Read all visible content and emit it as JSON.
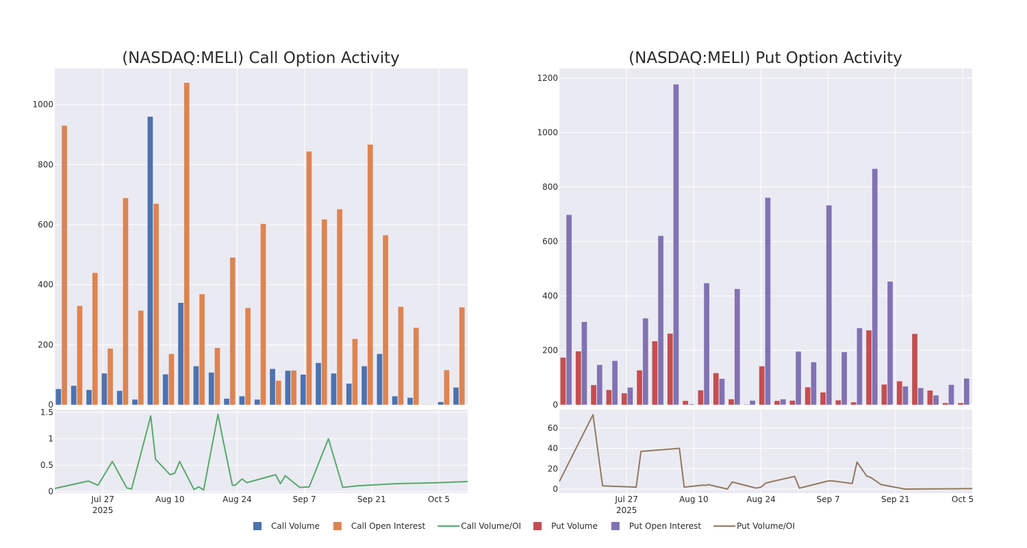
{
  "chart_data": [
    {
      "type": "bar",
      "title": "(NASDAQ:MELI) Call Option Activity",
      "xlabel": "",
      "ylabel": "",
      "ylim": [
        0,
        1120
      ],
      "yticks": [
        "0",
        "200",
        "400",
        "600",
        "800",
        "1000"
      ],
      "ytick_values": [
        0,
        200,
        400,
        600,
        800,
        1000
      ],
      "grid": true,
      "series": [
        {
          "name": "Call Volume",
          "color": "#4c72b0",
          "values": [
            53,
            64,
            50,
            105,
            47,
            18,
            960,
            102,
            340,
            129,
            108,
            21,
            29,
            18,
            120,
            114,
            101,
            140,
            105,
            71,
            129,
            170,
            29,
            24,
            1,
            10,
            58
          ]
        },
        {
          "name": "Call Open Interest",
          "color": "#dd8452",
          "values": [
            930,
            330,
            440,
            188,
            689,
            314,
            670,
            170,
            1073,
            369,
            190,
            491,
            323,
            603,
            81,
            115,
            844,
            618,
            652,
            220,
            867,
            565,
            327,
            257,
            1,
            116,
            325
          ]
        }
      ],
      "subplot": {
        "type": "line",
        "name": "Call Volume/OI",
        "color": "#55a868",
        "ylim": [
          -0.03,
          1.55
        ],
        "yticks": [
          "0",
          "0.5",
          "1",
          "1.5"
        ],
        "ytick_values": [
          0,
          0.5,
          1,
          1.5
        ],
        "xticks": [
          "Jul 27",
          "Aug 10",
          "Aug 24",
          "Sep 7",
          "Sep 21",
          "Oct 5"
        ],
        "xtick_day_offsets": [
          10,
          24,
          38,
          52,
          66,
          80
        ],
        "year_label": "2025",
        "x_day_offsets": [
          0,
          7,
          9,
          12,
          15,
          16,
          20,
          21,
          24,
          25,
          26,
          29,
          30,
          31,
          34,
          35,
          37,
          37.6,
          39,
          40,
          46,
          47,
          48,
          51,
          53,
          57,
          60,
          62,
          63,
          69,
          71,
          80,
          86
        ],
        "values": [
          0.06,
          0.2,
          0.12,
          0.57,
          0.07,
          0.05,
          1.43,
          0.61,
          0.32,
          0.35,
          0.57,
          0.04,
          0.09,
          0.03,
          1.46,
          1.0,
          0.12,
          0.12,
          0.24,
          0.17,
          0.32,
          0.15,
          0.3,
          0.08,
          0.09,
          1.0,
          0.08,
          0.1,
          0.11,
          0.14,
          0.15,
          0.17,
          0.19
        ]
      }
    },
    {
      "type": "bar",
      "title": "(NASDAQ:MELI) Put Option Activity",
      "xlabel": "",
      "ylabel": "",
      "ylim": [
        0,
        1235
      ],
      "yticks": [
        "0",
        "200",
        "400",
        "600",
        "800",
        "1000",
        "1200"
      ],
      "ytick_values": [
        0,
        200,
        400,
        600,
        800,
        1000,
        1200
      ],
      "grid": true,
      "series": [
        {
          "name": "Put Volume",
          "color": "#c44e52",
          "values": [
            174,
            197,
            73,
            55,
            43,
            127,
            234,
            262,
            15,
            54,
            117,
            21,
            2,
            142,
            15,
            16,
            65,
            46,
            17,
            10,
            274,
            75,
            87,
            261,
            53,
            7,
            7
          ]
        },
        {
          "name": "Put Open Interest",
          "color": "#8172b3",
          "values": [
            698,
            305,
            147,
            162,
            64,
            318,
            621,
            1177,
            3,
            447,
            96,
            426,
            16,
            761,
            21,
            196,
            157,
            733,
            194,
            282,
            867,
            453,
            68,
            62,
            35,
            74,
            97
          ]
        }
      ],
      "subplot": {
        "type": "line",
        "name": "Put Volume/OI",
        "color": "#937860",
        "ylim": [
          -4,
          78
        ],
        "yticks": [
          "0",
          "20",
          "40",
          "60"
        ],
        "ytick_values": [
          0,
          20,
          40,
          60
        ],
        "xticks": [
          "Jul 27",
          "Aug 10",
          "Aug 24",
          "Sep 7",
          "Sep 21",
          "Oct 5"
        ],
        "xtick_day_offsets": [
          14,
          28,
          42,
          56,
          70,
          84
        ],
        "year_label": "2025",
        "x_day_offsets": [
          0,
          7,
          9,
          16,
          17,
          25,
          26,
          28,
          30,
          30.5,
          31,
          35,
          36,
          41,
          42,
          43,
          49,
          50,
          56,
          57,
          61,
          62,
          64,
          65,
          67,
          72,
          77,
          86
        ],
        "values": [
          7.5,
          73,
          3.2,
          2,
          37,
          40,
          2,
          3,
          4,
          3.6,
          4.5,
          0,
          7,
          1,
          2,
          6,
          12.5,
          1,
          8,
          8,
          5.5,
          26.5,
          13,
          11,
          4.5,
          0,
          0.2,
          0.5
        ]
      }
    }
  ],
  "legend": {
    "placement": "bottom-center",
    "items": [
      {
        "label": "Call Volume",
        "kind": "box",
        "color": "#4c72b0"
      },
      {
        "label": "Call Open Interest",
        "kind": "box",
        "color": "#dd8452"
      },
      {
        "label": "Call Volume/OI",
        "kind": "line",
        "color": "#55a868"
      },
      {
        "label": "Put Volume",
        "kind": "box",
        "color": "#c44e52"
      },
      {
        "label": "Put Open Interest",
        "kind": "box",
        "color": "#8172b3"
      },
      {
        "label": "Put Volume/OI",
        "kind": "line",
        "color": "#937860"
      }
    ]
  },
  "theme": {
    "plot_bg": "#eaeaf2",
    "grid": "#ffffff",
    "text": "#2a2a2a"
  }
}
